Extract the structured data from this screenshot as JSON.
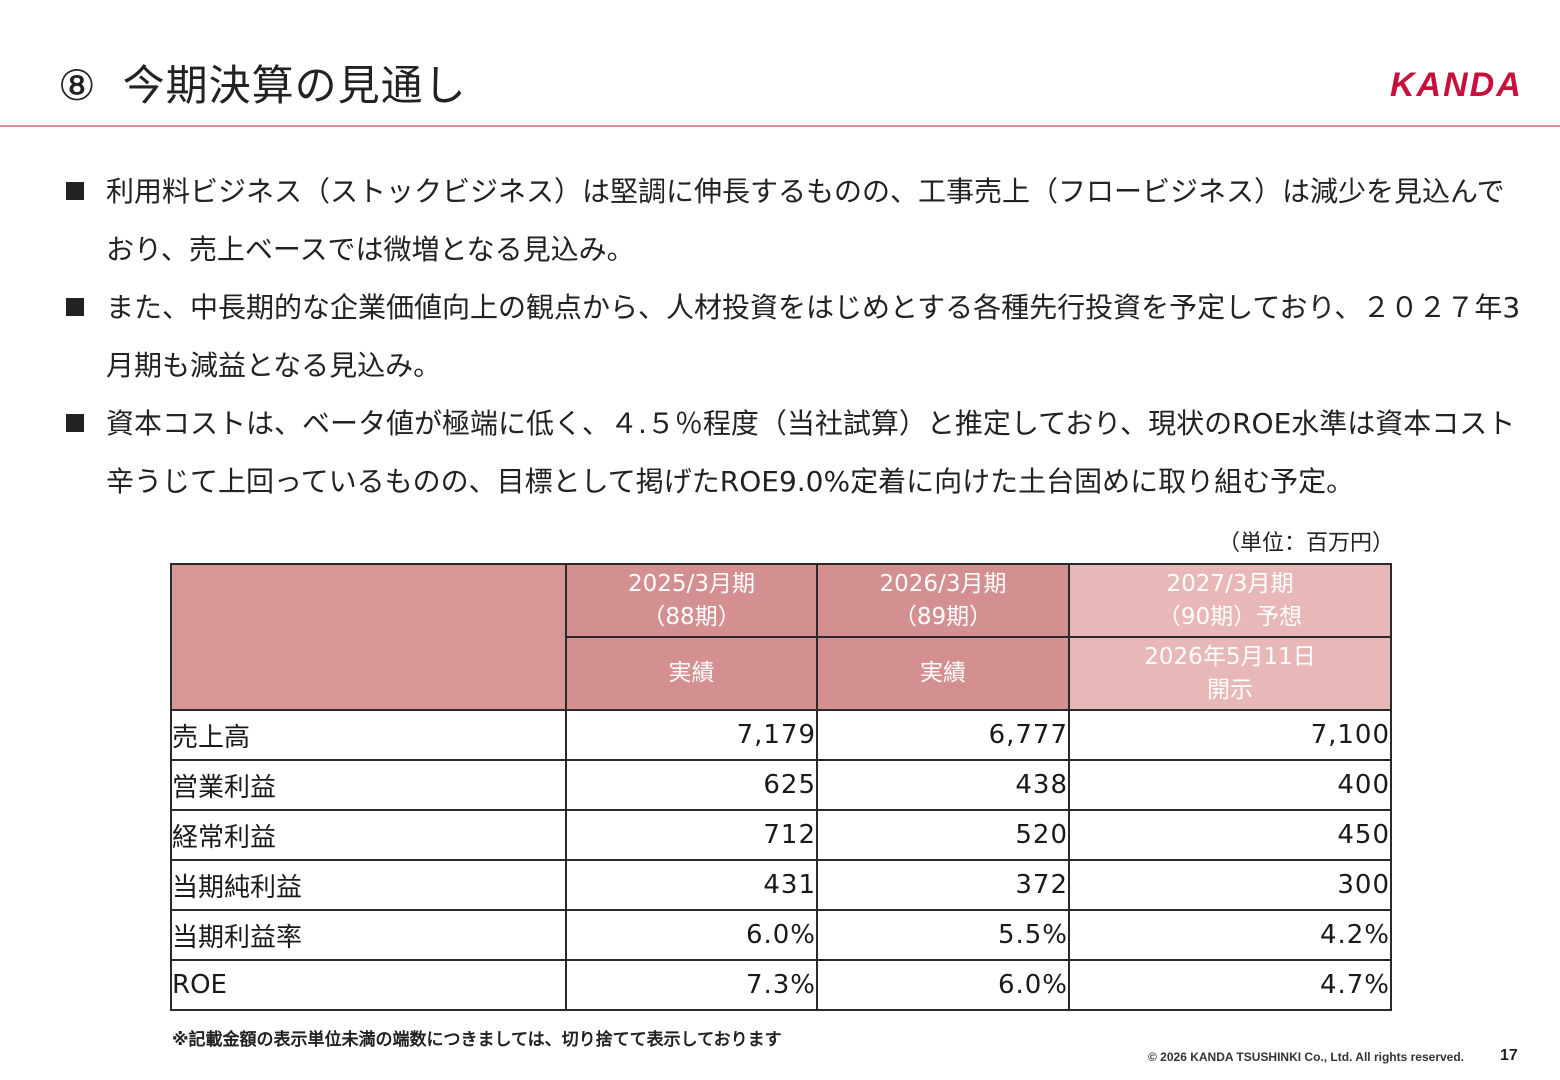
{
  "header": {
    "number": "⑧",
    "title": "今期決算の見通し",
    "logo": "KANDA"
  },
  "bullets": [
    "利用料ビジネス（ストックビジネス）は堅調に伸長するものの、工事売上（フロービジネス）は減少を見込んでおり、売上ベースでは微増となる見込み。",
    "また、中長期的な企業価値向上の観点から、人材投資をはじめとする各種先行投資を予定しており、２０２７年3月期も減益となる見込み。",
    "資本コストは、ベータ値が極端に低く、４.５％程度（当社試算）と推定しており、現状のROE水準は資本コスト辛うじて上回っているものの、目標として掲げたROE9.0%定着に向けた土台固めに取り組む予定。"
  ],
  "unit_note": "（単位：百万円）",
  "table": {
    "columns": [
      {
        "period": "2025/3月期",
        "term": "（88期）",
        "sub": "実績"
      },
      {
        "period": "2026/3月期",
        "term": "（89期）",
        "sub": "実績"
      },
      {
        "period": "2027/3月期",
        "term": "（90期）予想",
        "sub_line1": "2026年5月11日",
        "sub_line2": "開示"
      }
    ],
    "rows": [
      {
        "label": "売上高",
        "values": [
          "7,179",
          "6,777",
          "7,100"
        ]
      },
      {
        "label": "営業利益",
        "values": [
          "625",
          "438",
          "400"
        ]
      },
      {
        "label": "経常利益",
        "values": [
          "712",
          "520",
          "450"
        ]
      },
      {
        "label": "当期純利益",
        "values": [
          "431",
          "372",
          "300"
        ]
      },
      {
        "label": "当期利益率",
        "values": [
          "6.0%",
          "5.5%",
          "4.2%"
        ]
      },
      {
        "label": "ROE",
        "values": [
          "7.3%",
          "6.0%",
          "4.7%"
        ]
      }
    ]
  },
  "footnote": "※記載金額の表示単位未満の端数につきましては、切り捨てて表示しております",
  "footer": {
    "copyright": "© 2026 KANDA TSUSHINKI Co., Ltd. All rights reserved.",
    "page_number": "17"
  },
  "colors": {
    "accent_rule": "#d89090",
    "header_cell": "#d49091",
    "forecast_cell": "#e8b8b8",
    "logo": "#c8103c"
  }
}
